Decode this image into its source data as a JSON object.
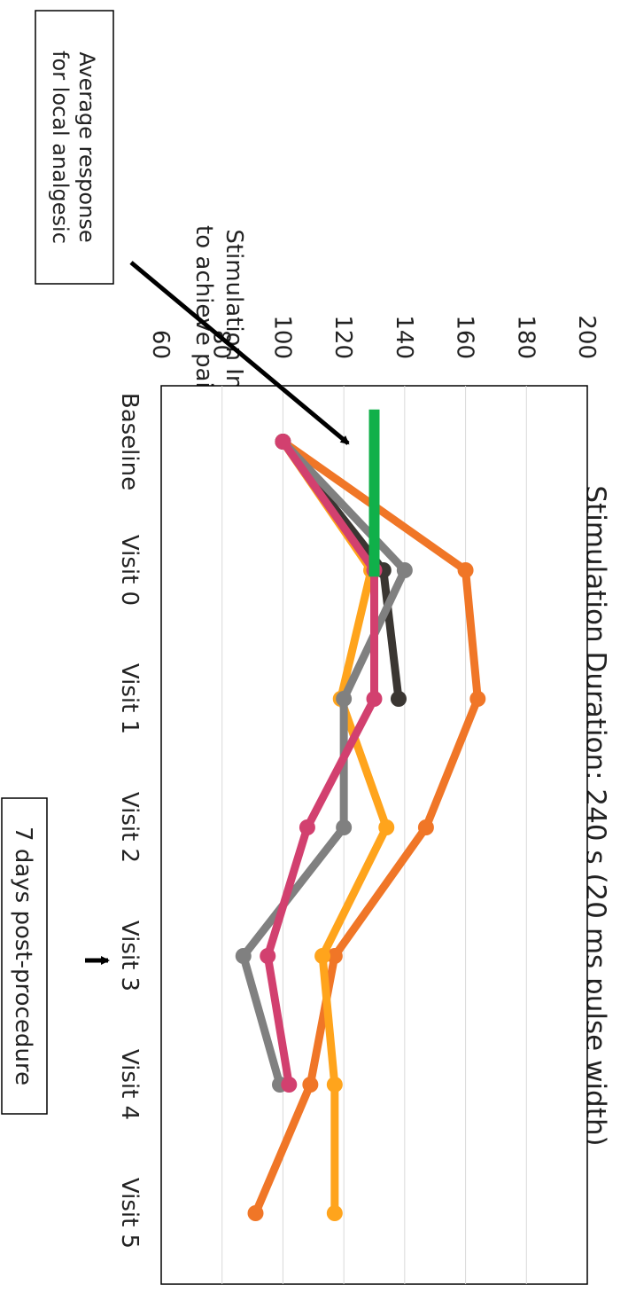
{
  "chart_data": {
    "type": "line",
    "title": "Stimulation Duration: 240 s (20 ms pulse width)",
    "ylabel": "Stimulation Intensity (%) to achieve pain-threshold",
    "ylabel_lines": [
      "Stimulation Intensity (%)",
      "to achieve pain-threshold"
    ],
    "categories": [
      "Baseline",
      "Visit 0",
      "Visit 1",
      "Visit 2",
      "Visit 3",
      "Visit 4",
      "Visit 5"
    ],
    "yticks": [
      60,
      80,
      100,
      120,
      140,
      160,
      180,
      200
    ],
    "ylim": [
      60,
      200
    ],
    "grid": true,
    "series": [
      {
        "color": "#f07627",
        "values": [
          100,
          160,
          164,
          147,
          117,
          109,
          91
        ]
      },
      {
        "color": "#ffa41c",
        "values": [
          100,
          129,
          119,
          134,
          113,
          117,
          117
        ]
      },
      {
        "color": "#3a3632",
        "values": [
          100,
          133,
          138,
          null,
          null,
          null,
          null
        ]
      },
      {
        "color": "#808080",
        "values": [
          100,
          140,
          120,
          120,
          87,
          99,
          null
        ]
      },
      {
        "color": "#d2406f",
        "values": [
          100,
          130,
          130,
          108,
          95,
          102,
          null
        ]
      }
    ],
    "reference_line": {
      "value": 130,
      "x_from": -0.25,
      "x_to": 1.05,
      "color": "#10b04a"
    },
    "annotations": {
      "analgesic_box_lines": [
        "Average response",
        "for local analgesic"
      ],
      "post_procedure_label": "7 days post-procedure"
    }
  }
}
